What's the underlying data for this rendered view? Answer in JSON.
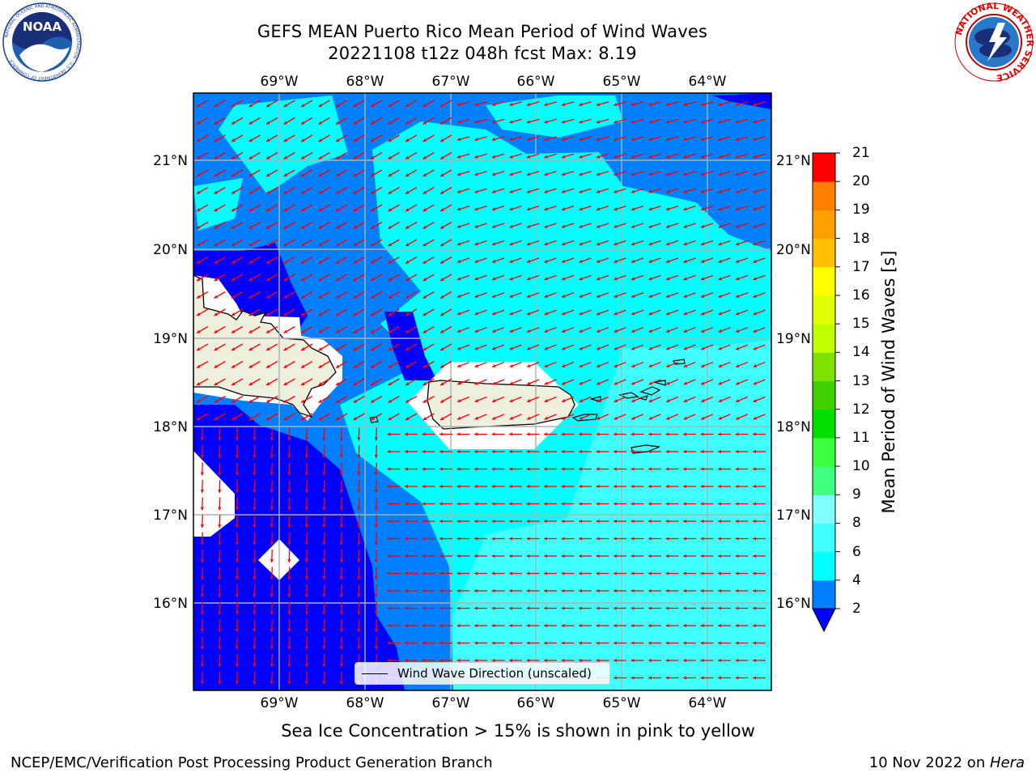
{
  "header": {
    "title_line1": "GEFS MEAN Puerto Rico Mean Period of Wind Waves",
    "title_line2": "20221108 t12z 048h fcst   Max: 8.19"
  },
  "logos": {
    "left": "noaa-logo",
    "right": "nws-logo",
    "right_ring_text": "NATIONAL WEATHER SERVICE"
  },
  "map": {
    "lon_labels": [
      "69°W",
      "68°W",
      "67°W",
      "66°W",
      "65°W",
      "64°W"
    ],
    "lat_labels": [
      "21°N",
      "20°N",
      "19°N",
      "18°N",
      "17°N",
      "16°N"
    ],
    "lon_range": [
      -70.0,
      -63.25
    ],
    "lat_range": [
      15.0,
      21.75
    ],
    "land_color": "#efefde",
    "arrow_color": "#ff0000",
    "fill_colors": [
      "#0000ff",
      "#0080ff",
      "#00ffff",
      "#40ffff"
    ]
  },
  "legend": {
    "label": "Wind Wave Direction (unscaled)"
  },
  "colorbar": {
    "label": "Mean Period of Wind Waves [s]",
    "ticks": [
      "2",
      "4",
      "6",
      "8",
      "9",
      "10",
      "11",
      "12",
      "13",
      "14",
      "15",
      "16",
      "17",
      "18",
      "19",
      "20",
      "21"
    ],
    "colors": [
      "#0080ff",
      "#00ffff",
      "#40ffff",
      "#80ffff",
      "#40ff80",
      "#40ff40",
      "#00e000",
      "#40d000",
      "#80e000",
      "#c0ff00",
      "#e0ff00",
      "#ffff00",
      "#ffc000",
      "#ffa000",
      "#ff8000",
      "#ff4000",
      "#ff0000"
    ],
    "under_color": "#0000ff"
  },
  "footer": {
    "note": "Sea Ice Concentration > 15% is shown in pink to yellow",
    "left": "NCEP/EMC/Verification Post Processing Product Generation Branch",
    "right_date": "10 Nov 2022 on ",
    "right_host": "Hera"
  }
}
